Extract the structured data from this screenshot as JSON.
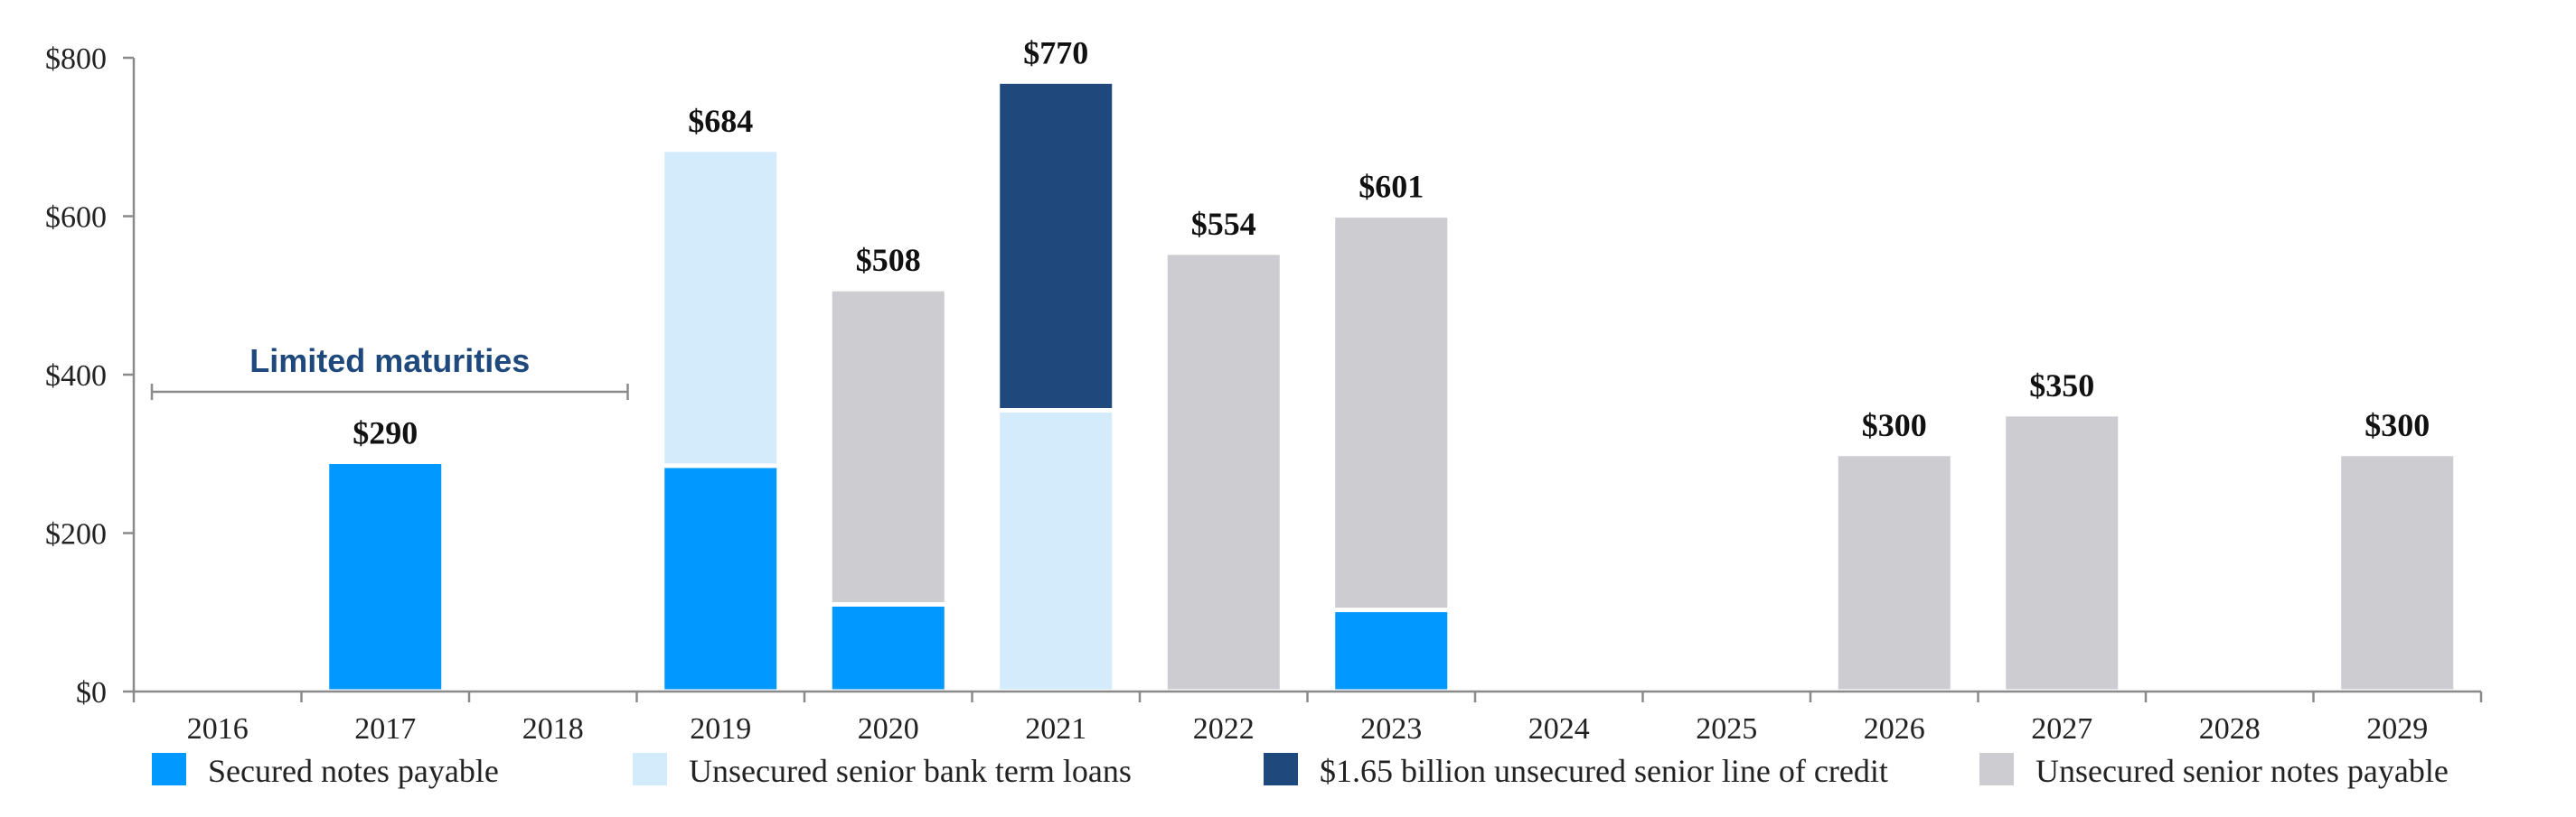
{
  "chart_data": {
    "type": "bar",
    "stacked": true,
    "categories": [
      "2016",
      "2017",
      "2018",
      "2019",
      "2020",
      "2021",
      "2022",
      "2023",
      "2024",
      "2025",
      "2026",
      "2027",
      "2028",
      "2029"
    ],
    "series": [
      {
        "name": "Secured notes payable",
        "color": "#0199FF",
        "values": [
          0,
          290,
          0,
          285,
          110,
          0,
          0,
          103,
          0,
          0,
          0,
          0,
          0,
          0
        ]
      },
      {
        "name": "Unsecured senior bank term loans",
        "color": "#D3EBFA",
        "values": [
          0,
          0,
          0,
          399,
          0,
          355,
          0,
          0,
          0,
          0,
          0,
          0,
          0,
          0
        ]
      },
      {
        "name": "$1.65 billion unsecured senior line of credit",
        "color": "#1F497D",
        "values": [
          0,
          0,
          0,
          0,
          0,
          415,
          0,
          0,
          0,
          0,
          0,
          0,
          0,
          0
        ]
      },
      {
        "name": "Unsecured senior notes payable",
        "color": "#CCCCD1",
        "values": [
          0,
          0,
          0,
          0,
          398,
          0,
          554,
          498,
          0,
          0,
          300,
          350,
          0,
          300
        ]
      }
    ],
    "totals": [
      "",
      "$290",
      "",
      "$684",
      "$508",
      "$770",
      "$554",
      "$601",
      "",
      "",
      "$300",
      "$350",
      "",
      "$300"
    ],
    "yaxis": {
      "min": 0,
      "max": 800,
      "step": 200,
      "tick_labels": [
        "$0",
        "$200",
        "$400",
        "$600",
        "$800"
      ]
    },
    "grid": false,
    "legend_position": "bottom",
    "annotation": {
      "text": "Limited maturities",
      "from_category": "2016",
      "to_category": "2018",
      "color": "#1F497D"
    }
  }
}
